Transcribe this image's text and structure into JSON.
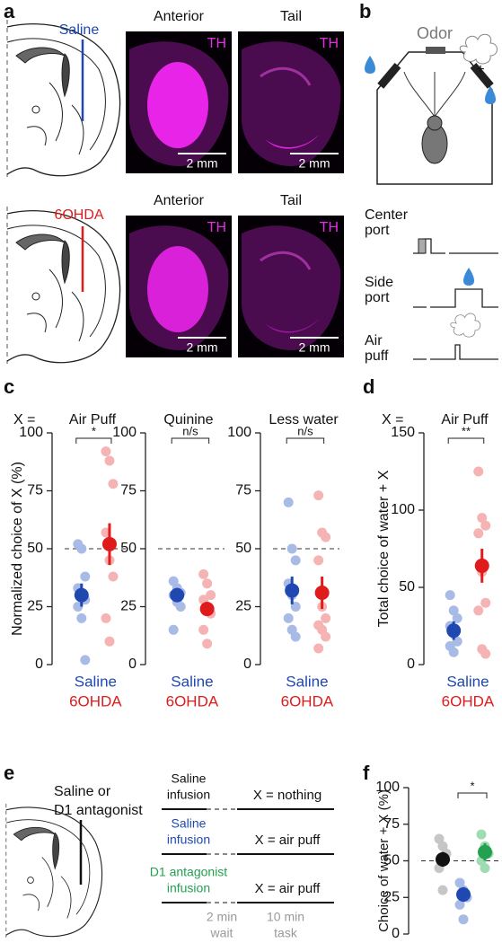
{
  "figure": {
    "panel_labels": [
      "a",
      "b",
      "c",
      "d",
      "e",
      "f"
    ],
    "a": {
      "groups": [
        "Saline",
        "6OHDA"
      ],
      "sections": [
        "Anterior",
        "Tail",
        "Anterior",
        "Tail"
      ],
      "stain": [
        "TH",
        "TH",
        "TH",
        "TH"
      ],
      "scale": [
        "2 mm",
        "2 mm",
        "2 mm",
        "2 mm"
      ]
    },
    "b": {
      "odor": "Odor",
      "plus": "+",
      "ports": [
        [
          "Center",
          "port"
        ],
        [
          "Side",
          "port"
        ],
        [
          "Air",
          "puff"
        ]
      ]
    },
    "e": {
      "drug": [
        "Saline or",
        "D1 antagonist"
      ],
      "rows": [
        {
          "infusion": [
            "Saline",
            "infusion"
          ],
          "x": "X = nothing"
        },
        {
          "infusion": [
            "Saline",
            "infusion"
          ],
          "x": "X = air puff"
        },
        {
          "infusion": [
            "D1 antagonist",
            "infusion"
          ],
          "x": "X = air puff"
        }
      ],
      "wait": [
        "2 min",
        "wait"
      ],
      "task": [
        "10 min",
        "task"
      ]
    }
  },
  "chart_data": [
    {
      "type": "dot",
      "title_prefix": "X =",
      "title": "Air Puff",
      "ylabel": "Normalized choice of X (%)",
      "ylim": [
        0,
        100
      ],
      "yticks": [
        0,
        25,
        50,
        75,
        100
      ],
      "reference": 50,
      "significance": "*",
      "series": [
        {
          "name": "Saline",
          "color": "#1f48b0",
          "light_color": "#a8bbe6",
          "values": [
            52,
            50,
            38,
            33,
            30,
            28,
            25,
            20,
            2
          ],
          "mean": 30,
          "error": 5
        },
        {
          "name": "6OHDA",
          "color": "#e01b1b",
          "light_color": "#f5b3b3",
          "values": [
            92,
            88,
            78,
            57,
            45,
            38,
            20,
            10
          ],
          "mean": 52,
          "error": 9
        }
      ]
    },
    {
      "type": "dot",
      "title": "Quinine",
      "ylim": [
        0,
        100
      ],
      "yticks": [
        0,
        25,
        50,
        75,
        100
      ],
      "reference": 50,
      "significance": "n/s",
      "series": [
        {
          "name": "Saline",
          "color": "#1f48b0",
          "light_color": "#a8bbe6",
          "values": [
            36,
            33,
            31,
            30,
            27,
            25,
            15
          ],
          "mean": 30,
          "error": 3
        },
        {
          "name": "6OHDA",
          "color": "#e01b1b",
          "light_color": "#f5b3b3",
          "values": [
            39,
            35,
            30,
            28,
            25,
            22,
            15,
            9
          ],
          "mean": 24,
          "error": 3
        }
      ]
    },
    {
      "type": "dot",
      "title": "Less water",
      "ylim": [
        0,
        100
      ],
      "yticks": [
        0,
        25,
        50,
        75,
        100
      ],
      "reference": 50,
      "significance": "n/s",
      "series": [
        {
          "name": "Saline",
          "color": "#1f48b0",
          "light_color": "#a8bbe6",
          "values": [
            70,
            50,
            45,
            35,
            30,
            25,
            20,
            15,
            12
          ],
          "mean": 32,
          "error": 6
        },
        {
          "name": "6OHDA",
          "color": "#e01b1b",
          "light_color": "#f5b3b3",
          "values": [
            73,
            57,
            55,
            45,
            25,
            20,
            17,
            15,
            12,
            7
          ],
          "mean": 31,
          "error": 7
        }
      ]
    },
    {
      "type": "dot",
      "title_prefix": "X =",
      "title": "Air Puff",
      "ylabel": "Total choice of water + X",
      "ylim": [
        0,
        150
      ],
      "yticks": [
        0,
        50,
        100,
        150
      ],
      "significance": "**",
      "series": [
        {
          "name": "Saline",
          "color": "#1f48b0",
          "light_color": "#a8bbe6",
          "values": [
            45,
            35,
            30,
            25,
            20,
            15,
            12,
            8
          ],
          "mean": 22,
          "error": 6
        },
        {
          "name": "6OHDA",
          "color": "#e01b1b",
          "light_color": "#f5b3b3",
          "values": [
            125,
            95,
            90,
            85,
            60,
            40,
            35,
            10,
            7
          ],
          "mean": 64,
          "error": 11
        }
      ]
    },
    {
      "type": "dot",
      "ylabel": "Choice of water + X (%)",
      "ylim": [
        0,
        100
      ],
      "yticks": [
        0,
        25,
        50,
        75,
        100
      ],
      "reference": 50,
      "significance": "*",
      "series": [
        {
          "color": "#111111",
          "light_color": "#c6c6c6",
          "values": [
            65,
            60,
            55,
            45,
            30
          ],
          "mean": 51,
          "error": 5
        },
        {
          "color": "#1f48b0",
          "light_color": "#a8bbe6",
          "values": [
            35,
            30,
            25,
            20,
            10
          ],
          "mean": 27,
          "error": 5
        },
        {
          "color": "#23a050",
          "light_color": "#9fdcb3",
          "values": [
            68,
            60,
            55,
            50,
            45
          ],
          "mean": 56,
          "error": 6
        }
      ]
    }
  ]
}
